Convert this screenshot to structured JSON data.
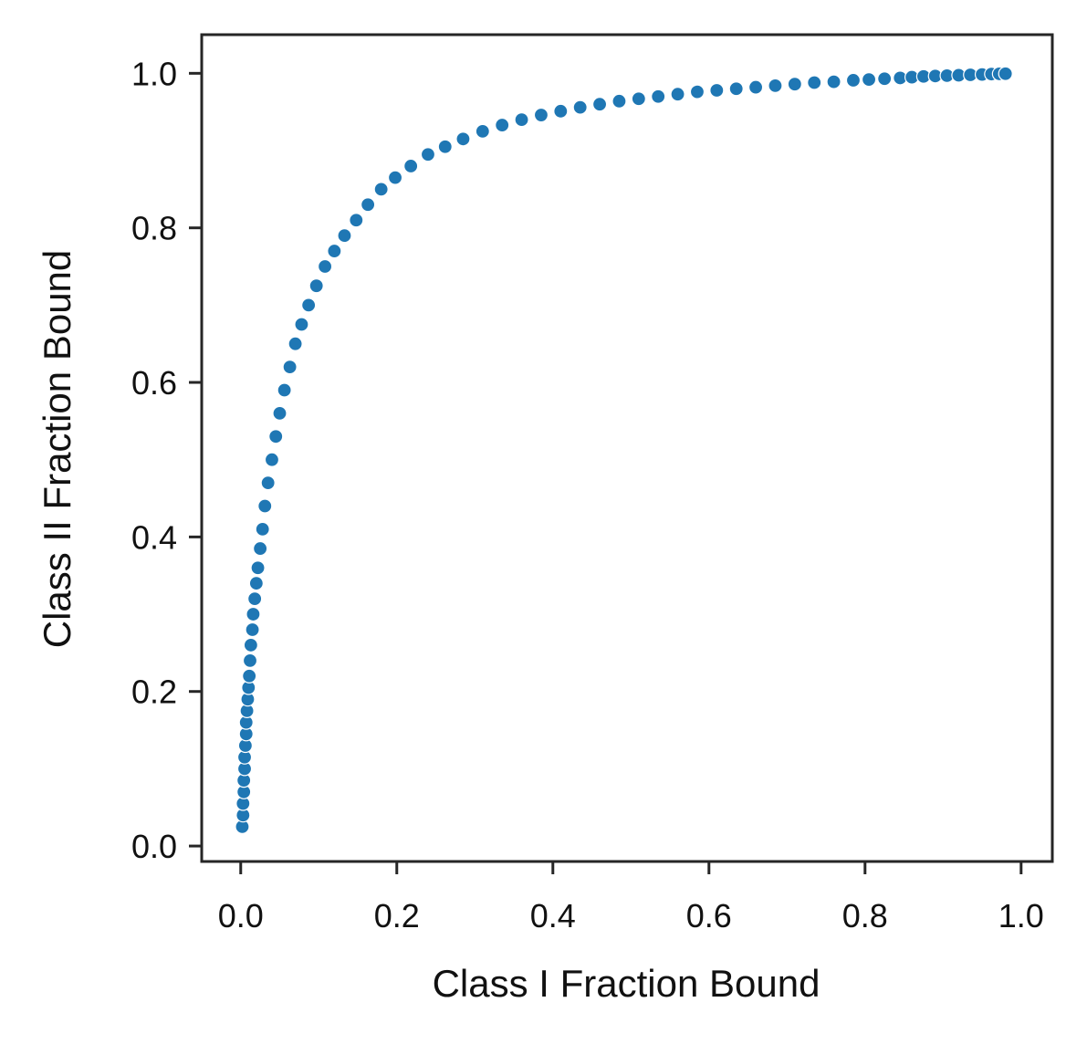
{
  "chart_data": {
    "type": "scatter",
    "title": "",
    "xlabel": "Class I Fraction Bound",
    "ylabel": "Class II Fraction Bound",
    "xlim": [
      -0.05,
      1.04
    ],
    "ylim": [
      -0.02,
      1.05
    ],
    "xticks": [
      0.0,
      0.2,
      0.4,
      0.6,
      0.8,
      1.0
    ],
    "yticks": [
      0.0,
      0.2,
      0.4,
      0.6,
      0.8,
      1.0
    ],
    "xtick_labels": [
      "0.0",
      "0.2",
      "0.4",
      "0.6",
      "0.8",
      "1.0"
    ],
    "ytick_labels": [
      "0.0",
      "0.2",
      "0.4",
      "0.6",
      "0.8",
      "1.0"
    ],
    "grid": false,
    "series": [
      {
        "color": "#1f77b4",
        "points": [
          [
            0.002,
            0.025
          ],
          [
            0.003,
            0.04
          ],
          [
            0.003,
            0.055
          ],
          [
            0.004,
            0.07
          ],
          [
            0.004,
            0.085
          ],
          [
            0.005,
            0.1
          ],
          [
            0.005,
            0.115
          ],
          [
            0.006,
            0.13
          ],
          [
            0.007,
            0.145
          ],
          [
            0.007,
            0.16
          ],
          [
            0.008,
            0.175
          ],
          [
            0.009,
            0.19
          ],
          [
            0.01,
            0.205
          ],
          [
            0.011,
            0.22
          ],
          [
            0.012,
            0.24
          ],
          [
            0.013,
            0.26
          ],
          [
            0.015,
            0.28
          ],
          [
            0.016,
            0.3
          ],
          [
            0.018,
            0.32
          ],
          [
            0.02,
            0.34
          ],
          [
            0.022,
            0.36
          ],
          [
            0.025,
            0.385
          ],
          [
            0.028,
            0.41
          ],
          [
            0.031,
            0.44
          ],
          [
            0.035,
            0.47
          ],
          [
            0.04,
            0.5
          ],
          [
            0.045,
            0.53
          ],
          [
            0.05,
            0.56
          ],
          [
            0.056,
            0.59
          ],
          [
            0.063,
            0.62
          ],
          [
            0.07,
            0.65
          ],
          [
            0.078,
            0.675
          ],
          [
            0.087,
            0.7
          ],
          [
            0.097,
            0.725
          ],
          [
            0.108,
            0.75
          ],
          [
            0.12,
            0.77
          ],
          [
            0.133,
            0.79
          ],
          [
            0.148,
            0.81
          ],
          [
            0.163,
            0.83
          ],
          [
            0.18,
            0.85
          ],
          [
            0.198,
            0.865
          ],
          [
            0.218,
            0.88
          ],
          [
            0.24,
            0.895
          ],
          [
            0.262,
            0.905
          ],
          [
            0.285,
            0.915
          ],
          [
            0.31,
            0.925
          ],
          [
            0.335,
            0.933
          ],
          [
            0.36,
            0.94
          ],
          [
            0.385,
            0.946
          ],
          [
            0.41,
            0.951
          ],
          [
            0.435,
            0.956
          ],
          [
            0.46,
            0.96
          ],
          [
            0.485,
            0.964
          ],
          [
            0.51,
            0.967
          ],
          [
            0.535,
            0.97
          ],
          [
            0.56,
            0.973
          ],
          [
            0.585,
            0.976
          ],
          [
            0.61,
            0.978
          ],
          [
            0.635,
            0.98
          ],
          [
            0.66,
            0.982
          ],
          [
            0.685,
            0.984
          ],
          [
            0.71,
            0.986
          ],
          [
            0.735,
            0.988
          ],
          [
            0.76,
            0.989
          ],
          [
            0.785,
            0.991
          ],
          [
            0.805,
            0.992
          ],
          [
            0.825,
            0.993
          ],
          [
            0.845,
            0.994
          ],
          [
            0.86,
            0.995
          ],
          [
            0.875,
            0.996
          ],
          [
            0.89,
            0.9965
          ],
          [
            0.905,
            0.997
          ],
          [
            0.92,
            0.9975
          ],
          [
            0.935,
            0.998
          ],
          [
            0.95,
            0.9985
          ],
          [
            0.962,
            0.999
          ],
          [
            0.972,
            0.9993
          ],
          [
            0.98,
            0.9995
          ]
        ]
      }
    ]
  }
}
